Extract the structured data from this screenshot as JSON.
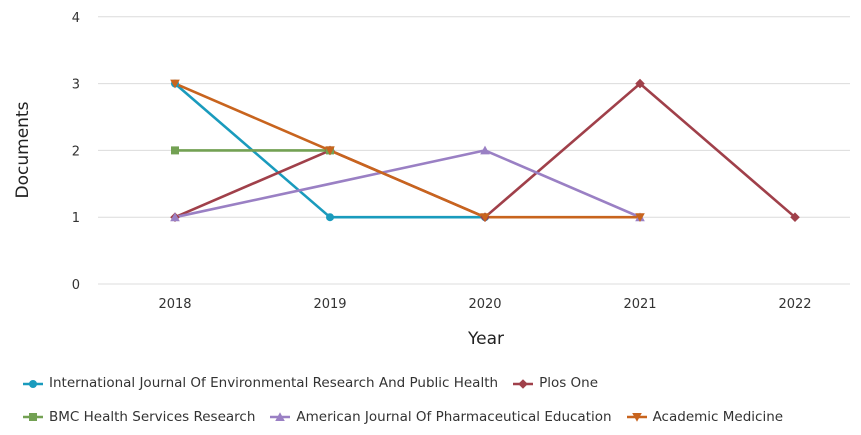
{
  "chart_data": {
    "type": "line",
    "x": [
      "2018",
      "2019",
      "2020",
      "2021",
      "2022"
    ],
    "xlabel": "Year",
    "ylabel": "Documents",
    "ylim": [
      0,
      4
    ],
    "yticks": [
      0,
      1,
      2,
      3,
      4
    ],
    "grid": "horizontal",
    "legend_position": "bottom",
    "series": [
      {
        "name": "International Journal Of Environmental Research And Public Health",
        "color": "#1a9bbd",
        "marker": "circle",
        "values": [
          3,
          1,
          1,
          null,
          null
        ]
      },
      {
        "name": "Plos One",
        "color": "#a0404a",
        "marker": "diamond",
        "values": [
          1,
          2,
          1,
          3,
          1
        ]
      },
      {
        "name": "BMC Health Services Research",
        "color": "#73a153",
        "marker": "square",
        "values": [
          2,
          2,
          null,
          null,
          null
        ]
      },
      {
        "name": "American Journal Of Pharmaceutical Education",
        "color": "#9a80c4",
        "marker": "triangle-up",
        "values": [
          1,
          1.5,
          2,
          1,
          null
        ]
      },
      {
        "name": "Academic Medicine",
        "color": "#c8641e",
        "marker": "triangle-down",
        "values": [
          3,
          2,
          1,
          1,
          null
        ]
      }
    ]
  }
}
